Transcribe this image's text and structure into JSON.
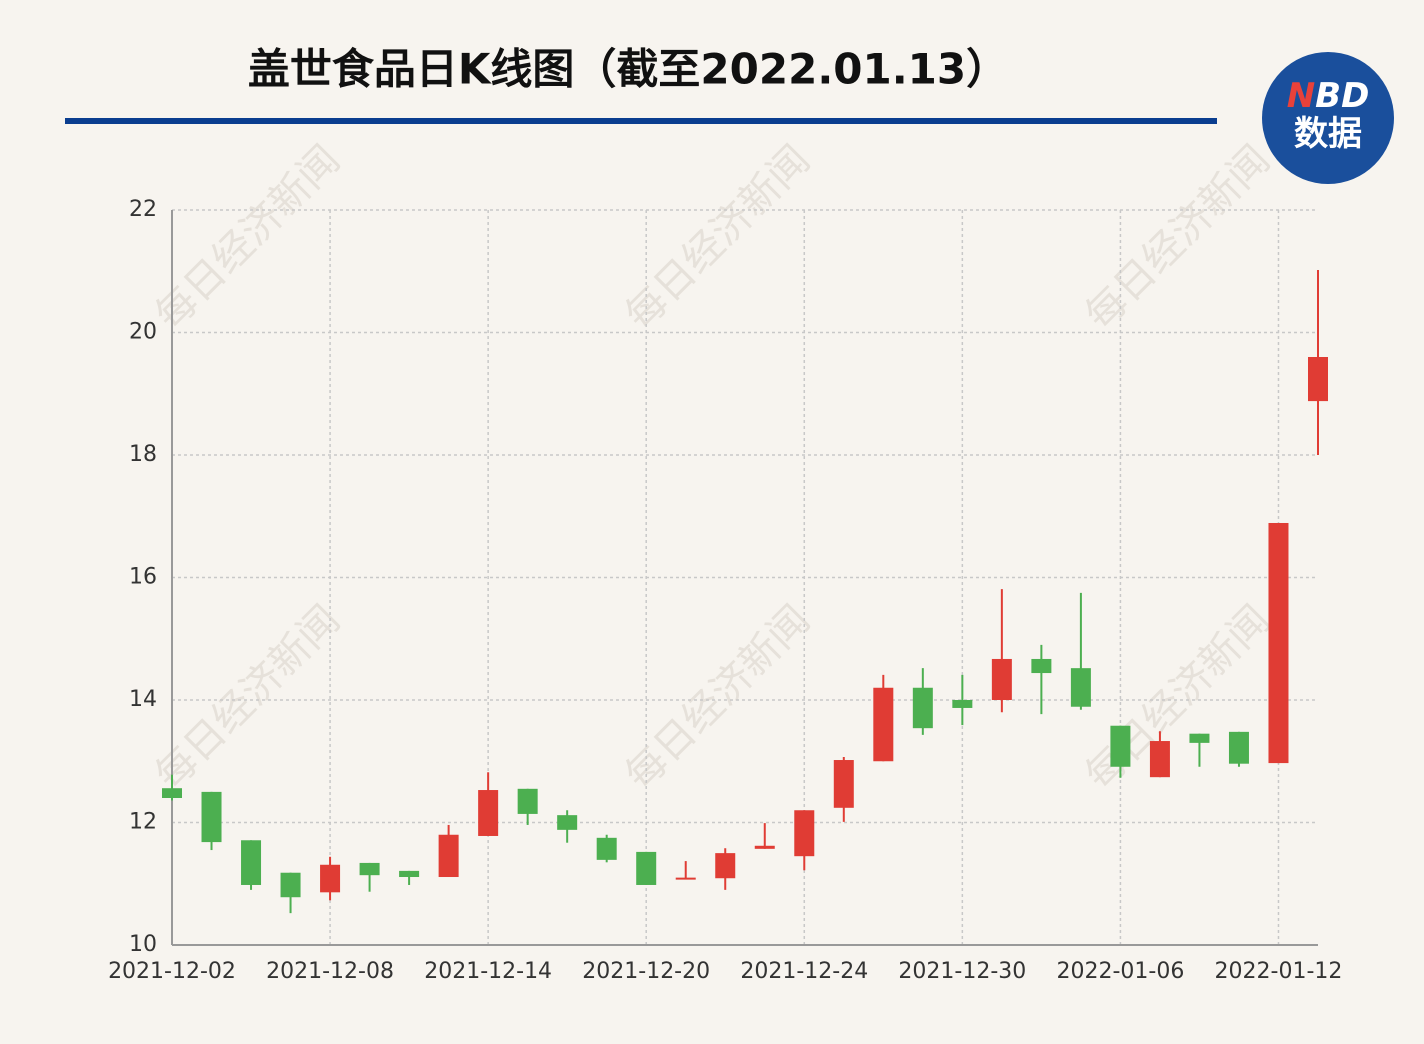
{
  "chart_data": {
    "type": "candlestick",
    "title": "盖世食品日K线图（截至2022.01.13）",
    "watermark": "每日经济新闻",
    "logo": {
      "line1": "NBD",
      "line2": "数据"
    },
    "categories": [
      "2021-12-02",
      null,
      null,
      null,
      "2021-12-08",
      null,
      null,
      null,
      "2021-12-14",
      null,
      null,
      null,
      "2021-12-20",
      null,
      null,
      null,
      "2021-12-24",
      null,
      null,
      null,
      "2021-12-30",
      null,
      null,
      null,
      "2022-01-06",
      null,
      null,
      null,
      "2022-01-12",
      null
    ],
    "open": [
      12.56,
      12.5,
      11.71,
      11.18,
      10.86,
      11.34,
      11.21,
      11.11,
      11.78,
      12.55,
      12.12,
      11.75,
      11.52,
      11.07,
      11.09,
      11.57,
      11.45,
      12.24,
      13.0,
      14.2,
      14.0,
      14.0,
      14.67,
      14.52,
      13.58,
      12.74,
      13.45,
      13.48,
      12.97,
      18.88
    ],
    "high": [
      12.78,
      12.5,
      11.71,
      11.18,
      11.44,
      11.34,
      11.21,
      11.96,
      12.82,
      12.55,
      12.2,
      11.8,
      11.52,
      11.37,
      11.58,
      11.99,
      12.2,
      13.07,
      14.41,
      14.52,
      14.41,
      15.81,
      14.9,
      15.75,
      13.58,
      13.49,
      13.45,
      13.48,
      16.89,
      21.02
    ],
    "low": [
      12.36,
      11.55,
      10.9,
      10.52,
      10.73,
      10.87,
      10.98,
      11.11,
      11.78,
      11.96,
      11.67,
      11.35,
      10.98,
      11.07,
      10.9,
      11.57,
      11.22,
      12.01,
      13.0,
      13.43,
      13.59,
      13.8,
      13.77,
      13.84,
      12.73,
      12.74,
      12.91,
      12.91,
      12.97,
      18.0
    ],
    "close": [
      12.4,
      11.68,
      10.98,
      10.78,
      11.31,
      11.14,
      11.11,
      11.8,
      12.53,
      12.14,
      11.88,
      11.39,
      10.98,
      11.1,
      11.5,
      11.62,
      12.2,
      13.02,
      14.2,
      13.54,
      13.87,
      14.67,
      14.44,
      13.89,
      12.91,
      13.33,
      13.3,
      12.96,
      16.89,
      19.6
    ],
    "up_color": "#e03c34",
    "down_color": "#4caf50",
    "ylim": [
      10,
      22
    ],
    "yticks": [
      10,
      12,
      14,
      16,
      18,
      20,
      22
    ],
    "grid": true
  }
}
